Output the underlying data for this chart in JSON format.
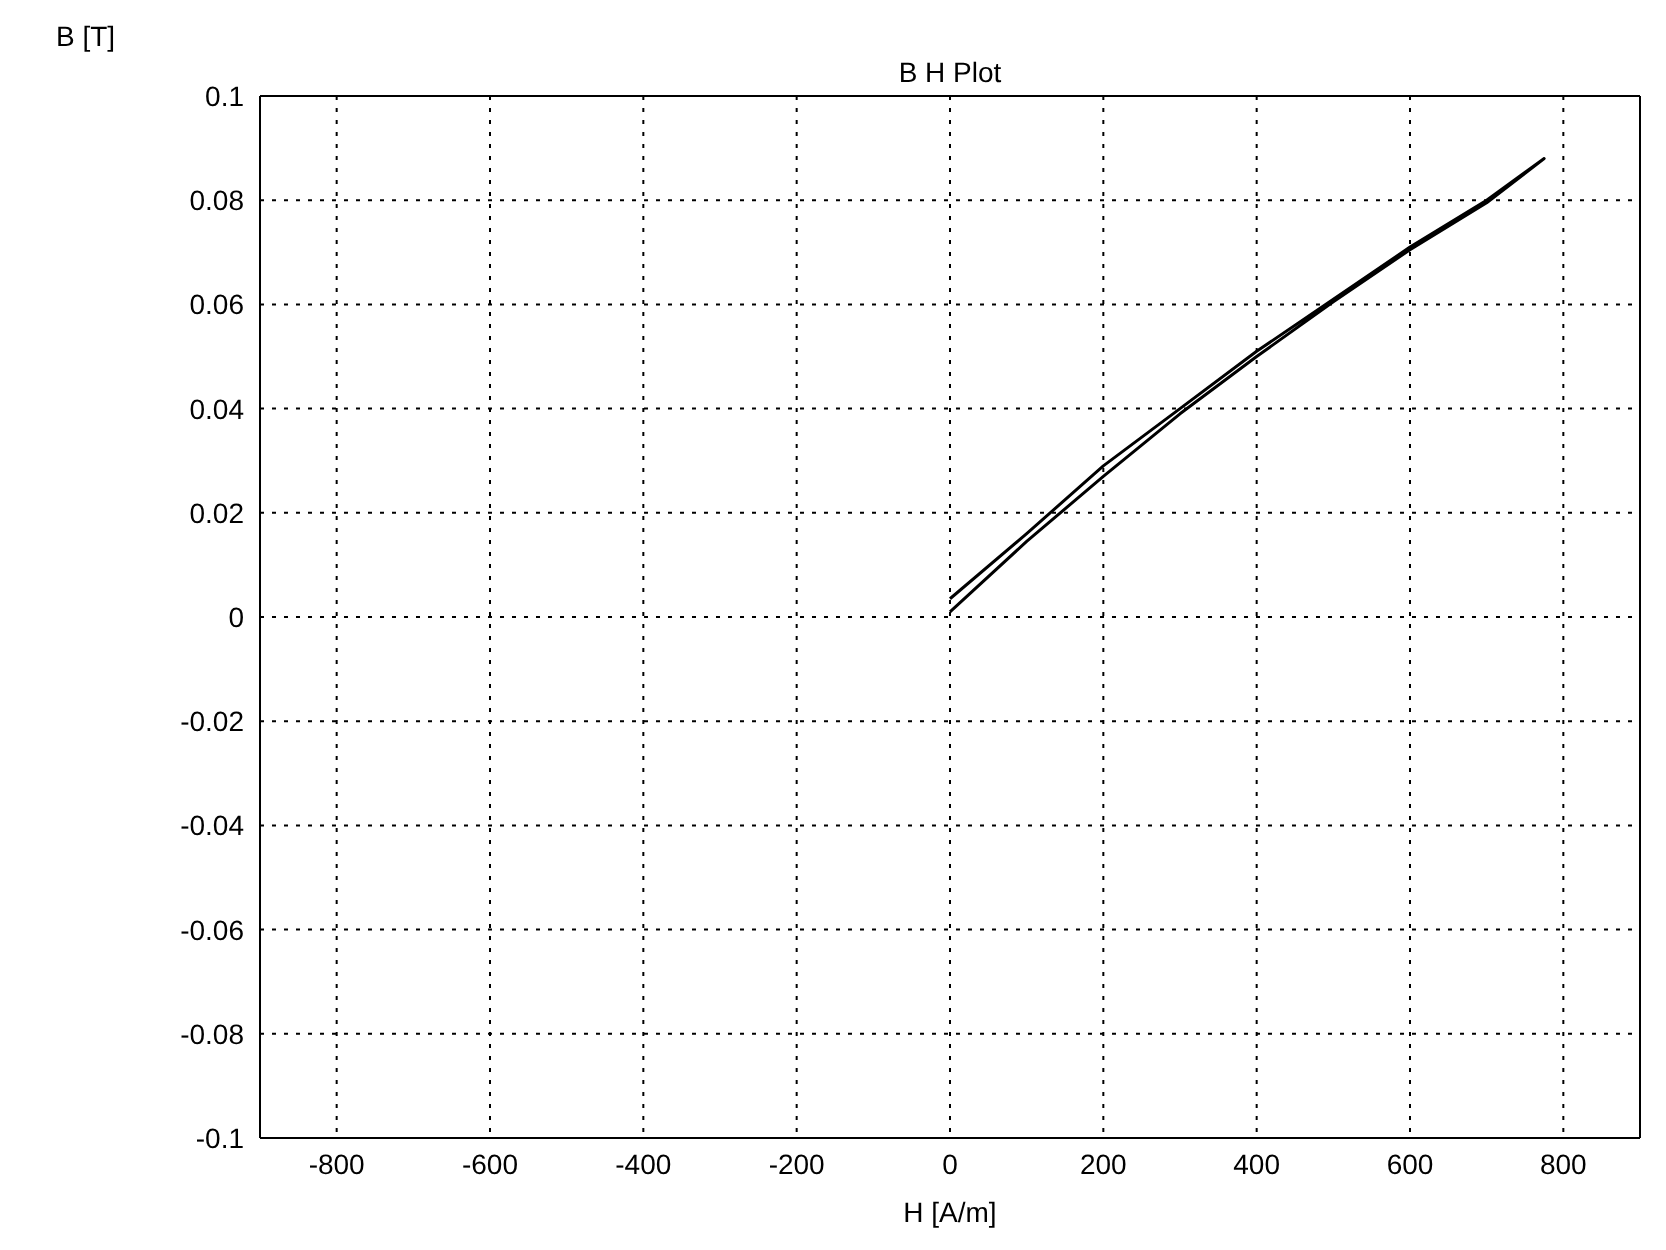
{
  "chart_data": {
    "type": "line",
    "title": "B H Plot",
    "xlabel": "H [A/m]",
    "ylabel": "B [T]",
    "x": [
      0,
      100,
      200,
      300,
      400,
      500,
      600,
      700,
      775,
      700,
      600,
      500,
      400,
      300,
      200,
      100,
      0
    ],
    "series": [
      {
        "color": "#000000",
        "values": [
          0.0035,
          0.016,
          0.029,
          0.04,
          0.051,
          0.061,
          0.071,
          0.08,
          0.088,
          0.0795,
          0.0705,
          0.0605,
          0.05,
          0.039,
          0.027,
          0.0145,
          0.001
        ]
      }
    ],
    "xlim": [
      -900,
      900
    ],
    "xticks": [
      -800,
      -600,
      -400,
      -200,
      0,
      200,
      400,
      600,
      800
    ],
    "ylim": [
      -0.1,
      0.1
    ],
    "yticks": [
      -0.1,
      -0.08,
      -0.06,
      -0.04,
      -0.02,
      0,
      0.02,
      0.04,
      0.06,
      0.08,
      0.1
    ],
    "grid": true
  }
}
